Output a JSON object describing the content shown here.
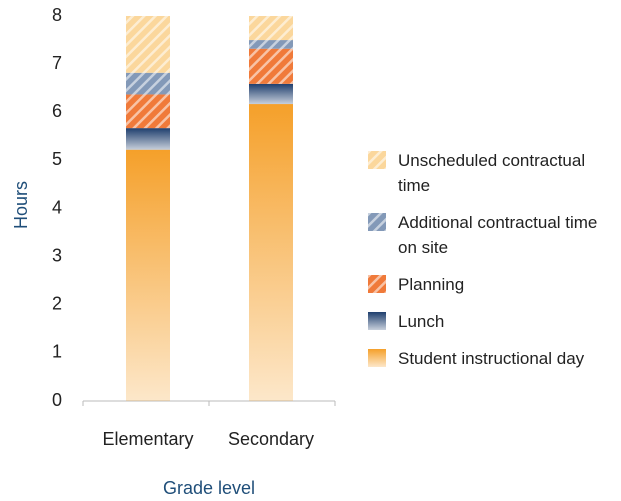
{
  "chart_data": {
    "type": "stacked_bar",
    "categories": [
      "Elementary",
      "Secondary"
    ],
    "x_label": "Grade level",
    "y_label": "Hours",
    "ylim": [
      0,
      8
    ],
    "yticks": [
      0,
      1,
      2,
      3,
      4,
      5,
      6,
      7,
      8
    ],
    "series": [
      {
        "name": "Student instructional day",
        "color": "#f5a02a",
        "gradient": true,
        "values": [
          5.22,
          6.17
        ]
      },
      {
        "name": "Lunch",
        "color": "#1f3f6e",
        "gradient": true,
        "values": [
          0.45,
          0.42
        ]
      },
      {
        "name": "Planning",
        "color": "#f07a3a",
        "hatched": true,
        "values": [
          0.7,
          0.73
        ]
      },
      {
        "name": "Additional contractual time on site",
        "color": "#8399b8",
        "hatched": true,
        "values": [
          0.45,
          0.18
        ]
      },
      {
        "name": "Unscheduled contractual time",
        "color": "#fbd79c",
        "hatched": true,
        "values": [
          1.18,
          0.5
        ]
      }
    ]
  }
}
